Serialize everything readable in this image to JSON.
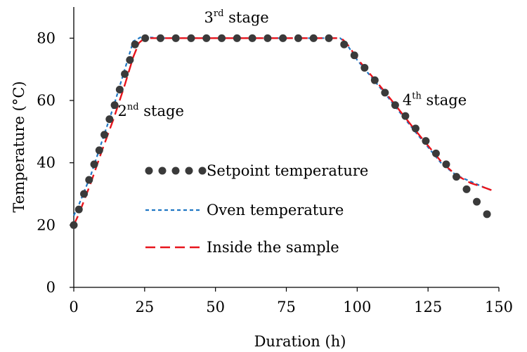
{
  "chart_data": {
    "type": "line",
    "xlabel": "Duration (h)",
    "ylabel": "Temperature (°C)",
    "xlim": [
      0,
      150
    ],
    "ylim": [
      0,
      90
    ],
    "xticks": [
      "0",
      "25",
      "50",
      "75",
      "100",
      "125",
      "150"
    ],
    "xtick_values": [
      0,
      25,
      50,
      75,
      100,
      125,
      150
    ],
    "yticks": [
      "0",
      "20",
      "40",
      "60",
      "80"
    ],
    "ytick_values": [
      0,
      20,
      40,
      60,
      80
    ],
    "grid": false,
    "legend_position": "center-left",
    "series": [
      {
        "name": "Setpoint temperature",
        "style": "markers",
        "color": "#3a3a3a",
        "x": [
          0,
          1.8,
          3.6,
          5.4,
          7.2,
          9,
          10.8,
          12.6,
          14.4,
          16.2,
          18,
          19.8,
          21.6,
          25.2,
          30.6,
          36,
          41.4,
          46.8,
          52.2,
          57.6,
          63,
          68.4,
          73.8,
          79.2,
          84.6,
          90,
          95.4,
          99,
          102.6,
          106.2,
          109.8,
          113.4,
          117,
          120.6,
          124.2,
          127.8,
          131.4,
          135,
          138.6,
          142.2,
          145.8
        ],
        "y": [
          20,
          25,
          30,
          34.5,
          39.5,
          44,
          49,
          54,
          58.5,
          63.5,
          68.5,
          73,
          78,
          80,
          80,
          80,
          80,
          80,
          80,
          80,
          80,
          80,
          80,
          80,
          80,
          80,
          78,
          74.5,
          70.5,
          66.5,
          62.5,
          58.5,
          55,
          51,
          47,
          43,
          39.5,
          35.5,
          31.5,
          27.5,
          23.5
        ]
      },
      {
        "name": "Oven temperature",
        "style": "dashed",
        "color": "#1f77c4",
        "x": [
          0,
          2,
          6,
          10,
          14,
          18,
          21,
          24,
          30,
          50,
          70,
          90,
          94,
          96,
          100,
          110,
          120,
          130,
          135,
          140,
          145,
          148
        ],
        "y": [
          23,
          27,
          36,
          47,
          58,
          70,
          79,
          80.5,
          80,
          80,
          80,
          80,
          80,
          78.5,
          73,
          62,
          50.5,
          39.5,
          36,
          34,
          32,
          31
        ]
      },
      {
        "name": "Inside the sample",
        "style": "longdash",
        "color": "#e8141c",
        "x": [
          0,
          2,
          6,
          10,
          14,
          18,
          21,
          23,
          25,
          30,
          50,
          70,
          90,
          93,
          95,
          97,
          100,
          110,
          120,
          130,
          135,
          140,
          145,
          148
        ],
        "y": [
          20,
          24,
          33.5,
          44,
          54,
          65,
          74,
          78.5,
          80,
          80,
          80,
          80,
          80,
          80,
          79.5,
          77.5,
          73.5,
          62.5,
          51,
          40,
          36,
          33.5,
          32,
          31
        ]
      }
    ],
    "annotations": [
      {
        "base": "2",
        "sup": "nd",
        "rest": " stage",
        "x": 15.5,
        "y": 55
      },
      {
        "base": "3",
        "sup": "rd",
        "rest": " stage",
        "x": 46,
        "y": 85
      },
      {
        "base": "4",
        "sup": "th",
        "rest": " stage",
        "x": 116,
        "y": 58.5
      }
    ]
  }
}
